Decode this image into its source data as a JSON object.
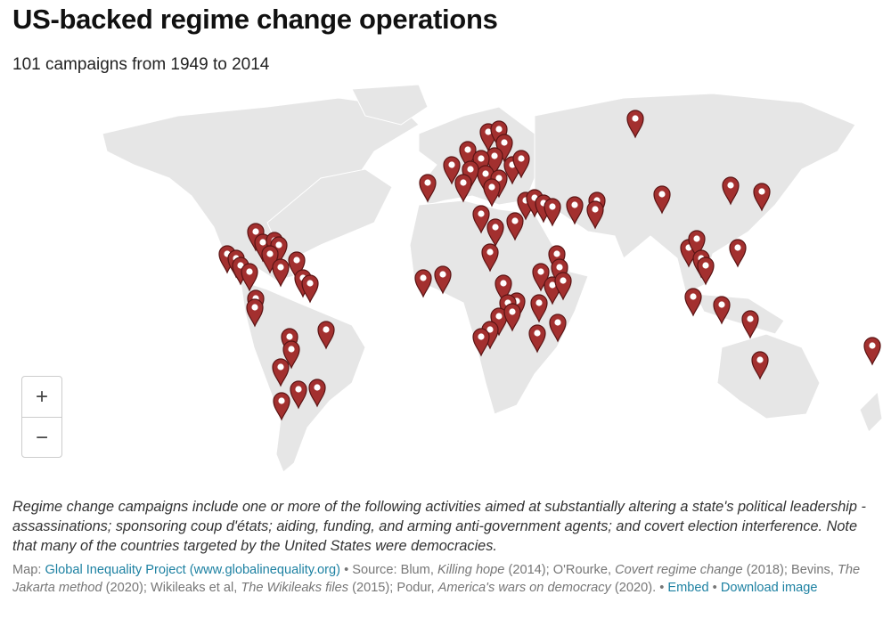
{
  "header": {
    "title": "US-backed regime change operations",
    "subtitle": "101 campaigns from 1949 to 2014"
  },
  "map": {
    "zoom_in": "+",
    "zoom_out": "−"
  },
  "description": "Regime change campaigns include one or more of the following activities aimed at substantially altering a state's political leadership - assassinations; sponsoring coup d'états; aiding, funding, and arming anti-government agents; and covert election interference. Note that many of the countries targeted by the United States were democracies.",
  "footer": {
    "parts": [
      "Map: ",
      "Global Inequality Project (www.globalinequality.org)",
      " • Source: Blum, ",
      "Killing hope",
      " (2014); O'Rourke, ",
      "Covert regime change",
      " (2018); Bevins, ",
      "The Jakarta method",
      " (2020); Wikileaks et al, ",
      "The Wikileaks files",
      " (2015); Podur, ",
      "America's wars on democracy",
      " (2020). • ",
      "Embed",
      " • ",
      "Download image"
    ]
  }
}
